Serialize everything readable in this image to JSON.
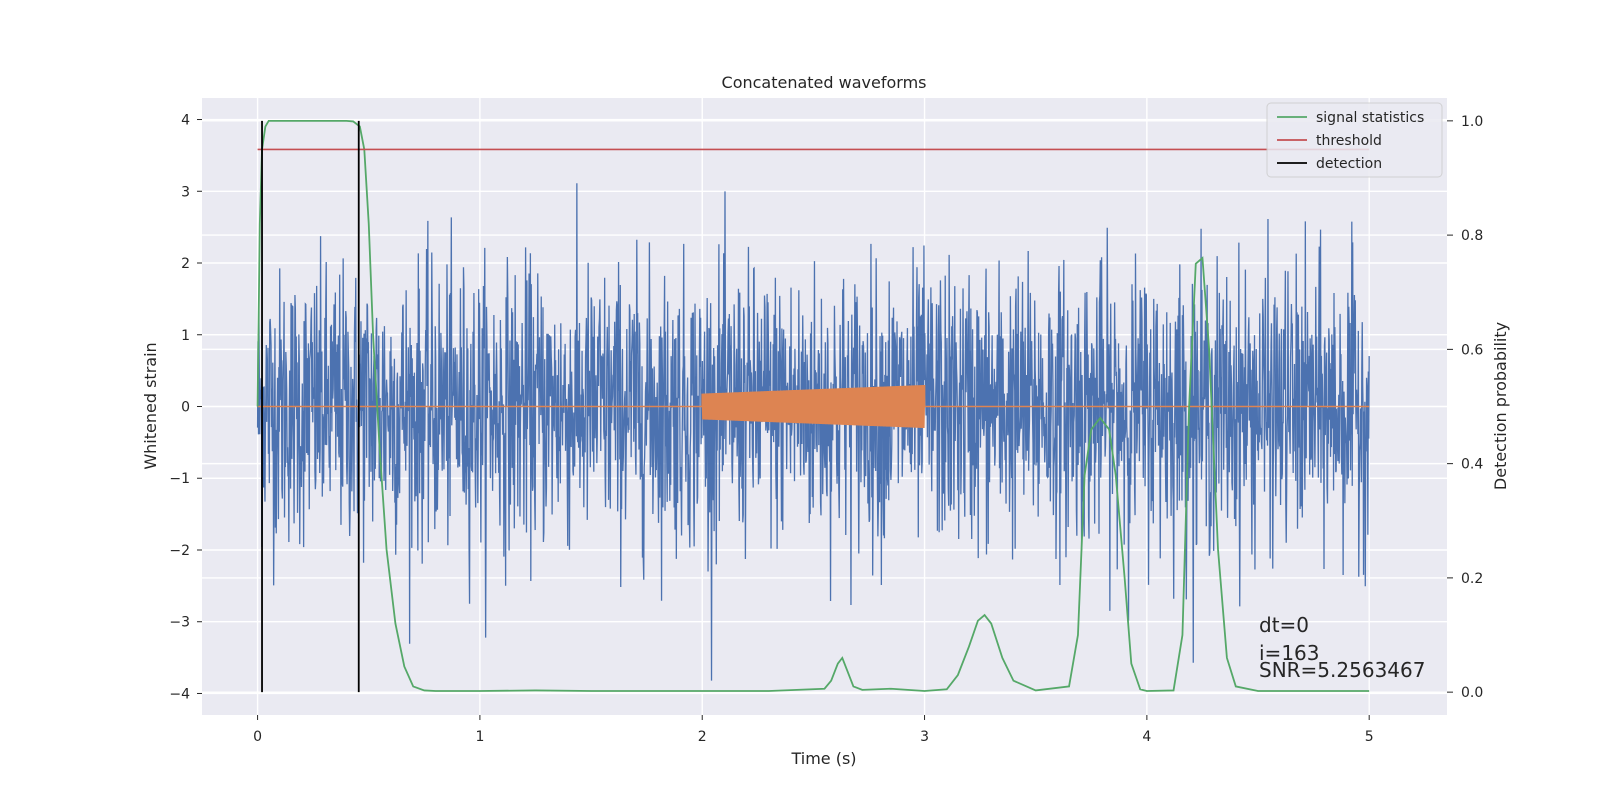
{
  "chart_data": {
    "type": "line",
    "title": "Concatenated waveforms",
    "xlabel": "Time (s)",
    "ylabel": "Whitened strain",
    "y2label": "Detection probability",
    "xlim": [
      -0.25,
      5.35
    ],
    "ylim": [
      -4.3,
      4.3
    ],
    "y2lim": [
      -0.04,
      1.04
    ],
    "xticks": [
      0,
      1,
      2,
      3,
      4,
      5
    ],
    "yticks": [
      -4,
      -3,
      -2,
      -1,
      0,
      1,
      2,
      3,
      4
    ],
    "y2ticks": [
      0.0,
      0.2,
      0.4,
      0.6,
      0.8,
      1.0
    ],
    "xtick_labels": [
      "0",
      "1",
      "2",
      "3",
      "4",
      "5"
    ],
    "ytick_labels": [
      "−4",
      "−3",
      "−2",
      "−1",
      "0",
      "1",
      "2",
      "3",
      "4"
    ],
    "y2tick_labels": [
      "0.0",
      "0.2",
      "0.4",
      "0.6",
      "0.8",
      "1.0"
    ],
    "grid": true,
    "legend_position": "top-right",
    "noise": {
      "x_range": [
        0,
        5
      ],
      "samples": 2560,
      "typical_amplitude": 1.4,
      "max": 3.9,
      "min": -3.9,
      "color": "#4c72b0"
    },
    "injection": {
      "x_range": [
        2,
        3
      ],
      "amplitude_start": 0.18,
      "amplitude_end": 0.3,
      "cycles": 150,
      "color": "#dd8452"
    },
    "series": [
      {
        "name": "signal statistics",
        "axis": "right",
        "color": "#55a868",
        "x": [
          0.0,
          0.01,
          0.02,
          0.035,
          0.05,
          0.07,
          0.1,
          0.2,
          0.3,
          0.4,
          0.43,
          0.46,
          0.48,
          0.5,
          0.52,
          0.55,
          0.58,
          0.62,
          0.66,
          0.7,
          0.75,
          0.8,
          1.0,
          1.25,
          1.5,
          2.0,
          2.3,
          2.55,
          2.58,
          2.61,
          2.63,
          2.65,
          2.68,
          2.72,
          2.85,
          3.0,
          3.1,
          3.15,
          3.2,
          3.24,
          3.27,
          3.3,
          3.35,
          3.4,
          3.5,
          3.65,
          3.69,
          3.72,
          3.75,
          3.79,
          3.83,
          3.86,
          3.9,
          3.93,
          3.97,
          4.0,
          4.12,
          4.16,
          4.19,
          4.22,
          4.25,
          4.28,
          4.32,
          4.36,
          4.4,
          4.5,
          5.0
        ],
        "y": [
          0.5,
          0.82,
          0.95,
          0.99,
          1.0,
          1.0,
          1.0,
          1.0,
          1.0,
          1.0,
          0.999,
          0.99,
          0.95,
          0.82,
          0.62,
          0.42,
          0.25,
          0.12,
          0.045,
          0.01,
          0.003,
          0.002,
          0.002,
          0.003,
          0.002,
          0.002,
          0.002,
          0.006,
          0.02,
          0.05,
          0.06,
          0.04,
          0.01,
          0.004,
          0.006,
          0.002,
          0.005,
          0.03,
          0.08,
          0.125,
          0.135,
          0.12,
          0.06,
          0.02,
          0.003,
          0.01,
          0.1,
          0.38,
          0.46,
          0.48,
          0.46,
          0.38,
          0.2,
          0.05,
          0.005,
          0.002,
          0.003,
          0.1,
          0.5,
          0.75,
          0.76,
          0.6,
          0.25,
          0.06,
          0.01,
          0.002,
          0.002
        ]
      },
      {
        "name": "threshold",
        "axis": "right",
        "color": "#c44e52",
        "x": [
          0,
          5
        ],
        "y": [
          0.95,
          0.95
        ]
      },
      {
        "name": "detection",
        "axis": "right",
        "color": "#000000",
        "lines_x": [
          0.02,
          0.455
        ],
        "y": [
          0.0,
          1.0
        ]
      }
    ],
    "annotations": [
      "dt=0",
      "i=163",
      "SNR=5.2563467"
    ]
  }
}
